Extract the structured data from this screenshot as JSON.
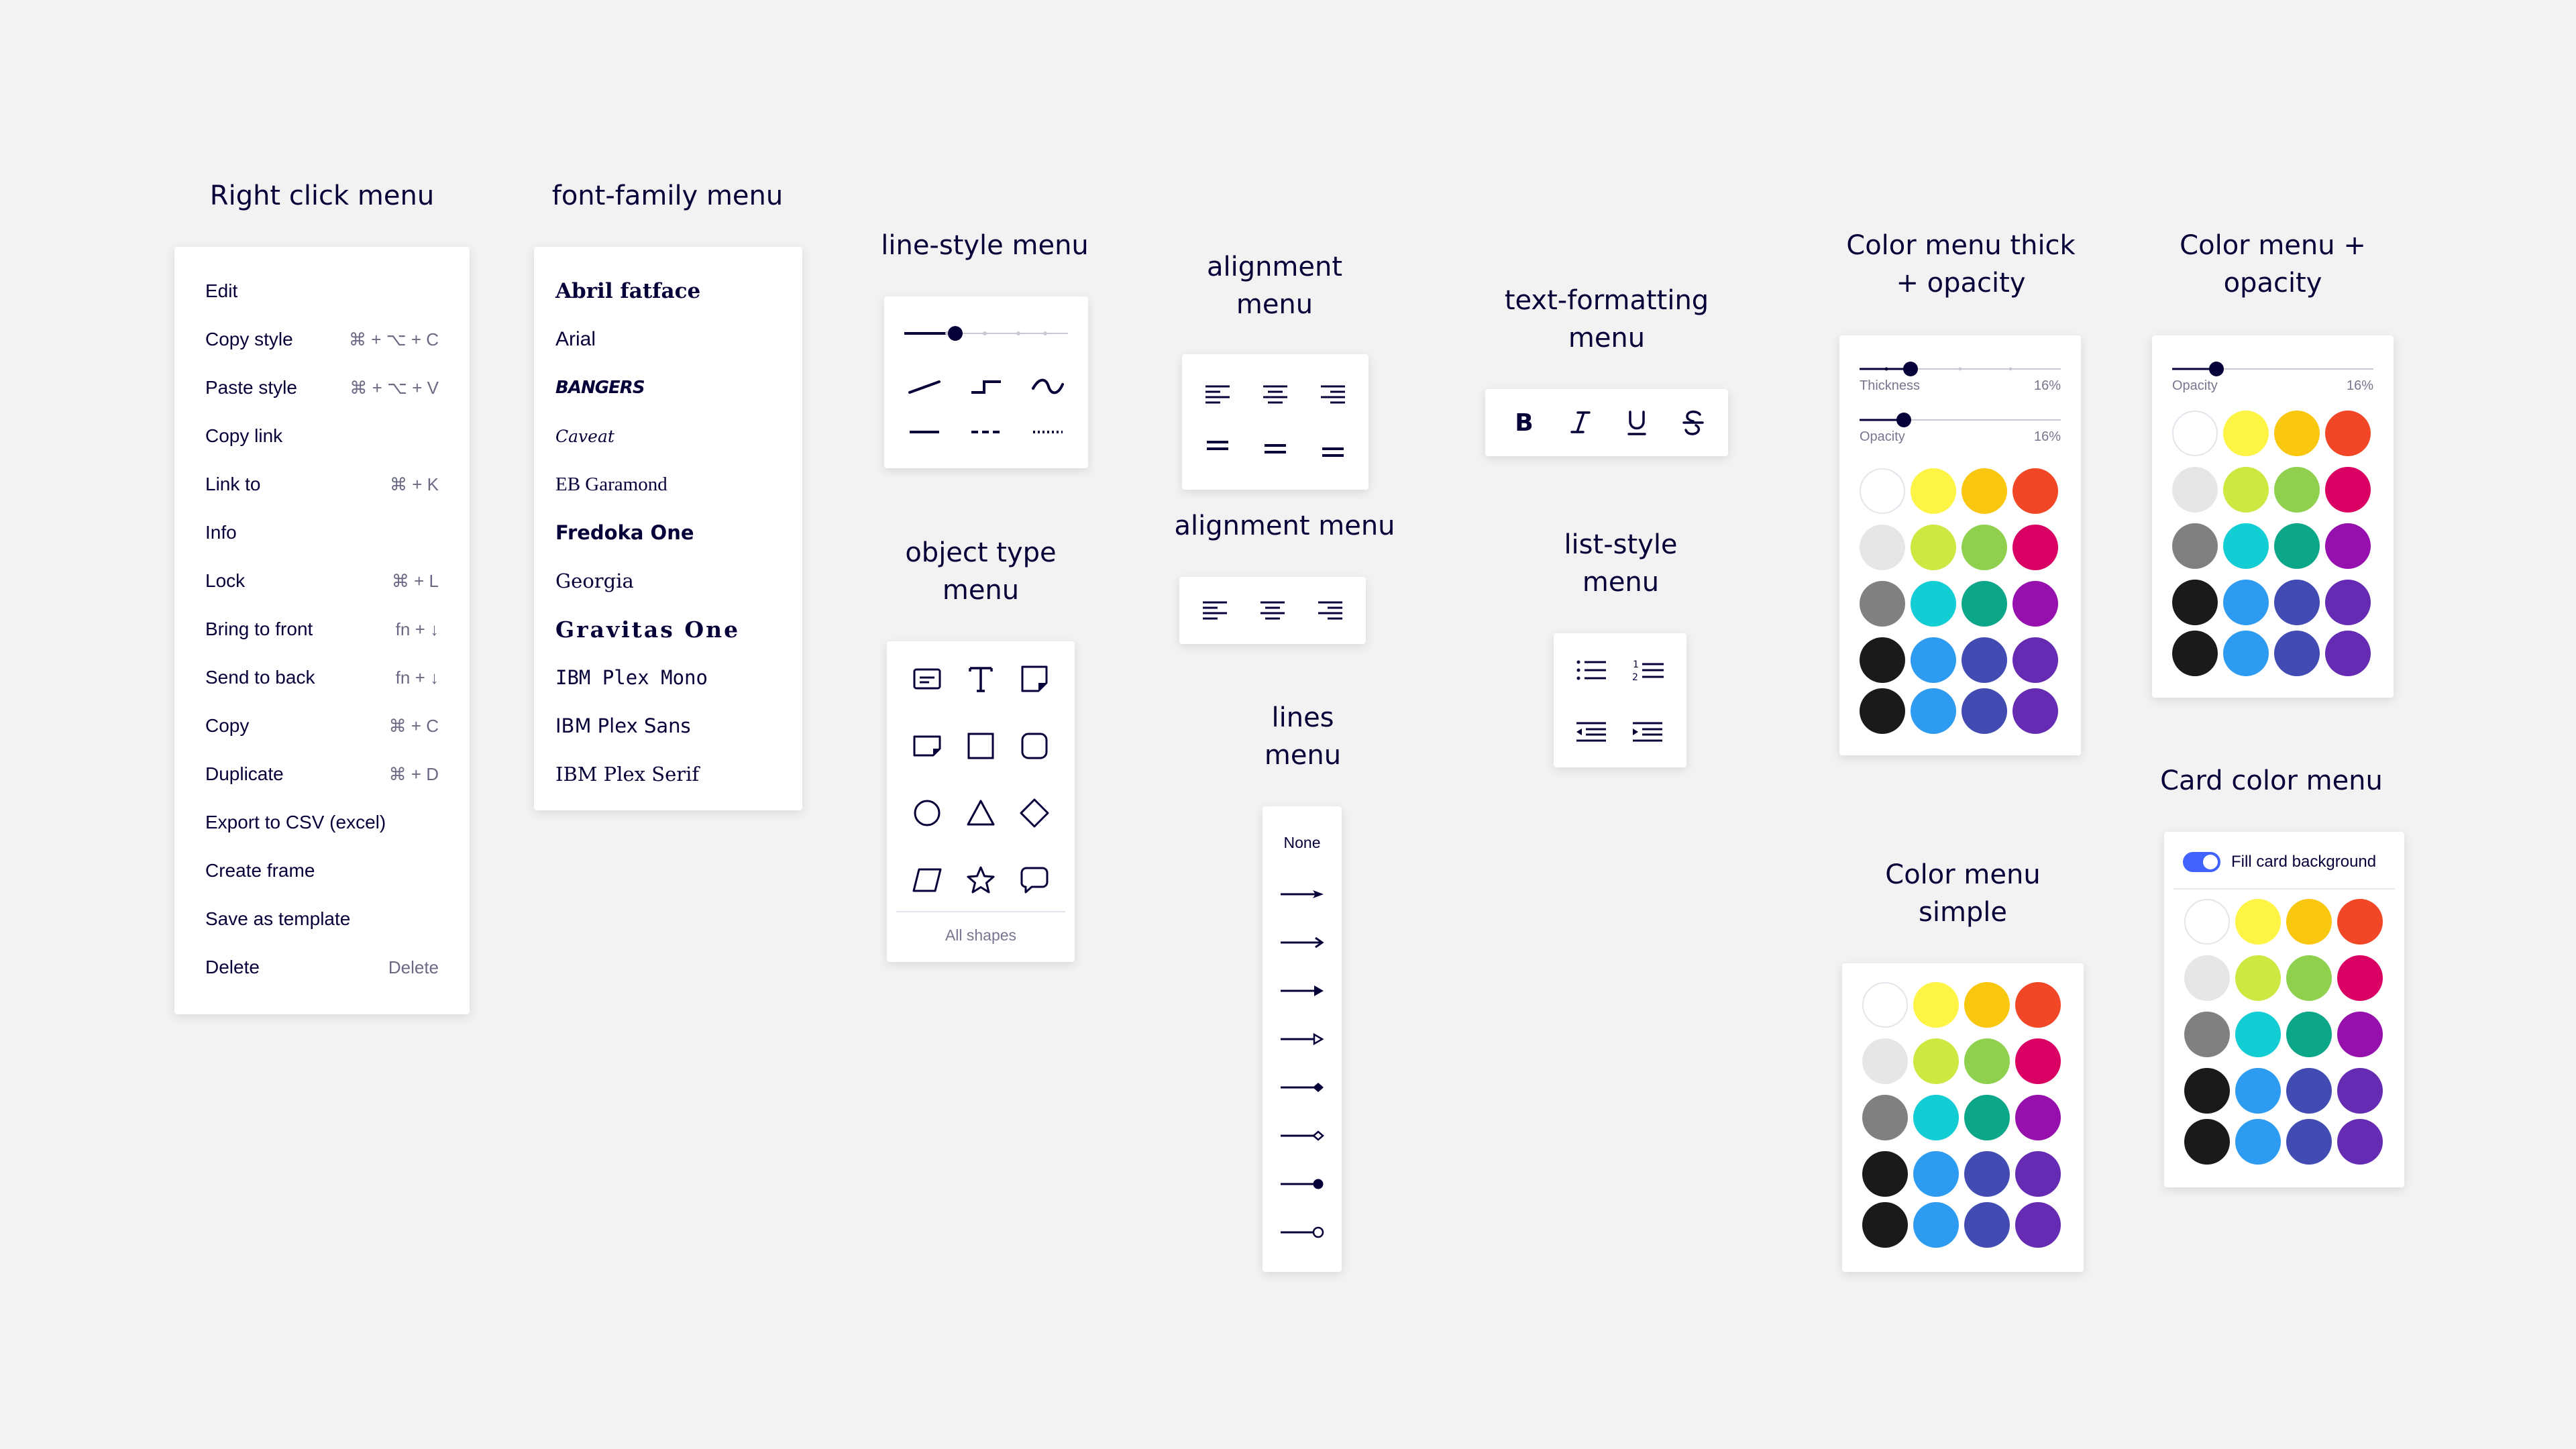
{
  "titles": {
    "right_click": "Right click menu",
    "font_family": "font-family menu",
    "line_style": "line-style menu",
    "alignment_1a": "alignment",
    "alignment_1b": "menu",
    "alignment_2": "alignment menu",
    "object_type_a": "object type",
    "object_type_b": "menu",
    "text_format_a": "text-formatting",
    "text_format_b": "menu",
    "list_style_a": "list-style",
    "list_style_b": "menu",
    "lines_a": "lines",
    "lines_b": "menu",
    "color_thick_a": "Color menu thick",
    "color_thick_b": "+ opacity",
    "color_opacity_a": "Color menu +",
    "color_opacity_b": "opacity",
    "color_simple_a": "Color menu",
    "color_simple_b": "simple",
    "card_color": "Card color menu"
  },
  "right_click_menu": {
    "items": [
      {
        "label": "Edit",
        "shortcut": ""
      },
      {
        "label": "Copy style",
        "shortcut": "⌘ + ⌥ + C"
      },
      {
        "label": "Paste style",
        "shortcut": "⌘ + ⌥ + V"
      },
      {
        "label": "Copy link",
        "shortcut": ""
      },
      {
        "label": "Link to",
        "shortcut": "⌘ + K"
      },
      {
        "label": "Info",
        "shortcut": ""
      },
      {
        "label": "Lock",
        "shortcut": "⌘ + L"
      },
      {
        "label": "Bring to front",
        "shortcut": "fn + ↓"
      },
      {
        "label": "Send to back",
        "shortcut": "fn + ↓"
      },
      {
        "label": "Copy",
        "shortcut": "⌘ + C"
      },
      {
        "label": "Duplicate",
        "shortcut": "⌘ + D"
      },
      {
        "label": "Export to CSV (excel)",
        "shortcut": ""
      },
      {
        "label": "Create frame",
        "shortcut": ""
      },
      {
        "label": "Save as template",
        "shortcut": ""
      },
      {
        "label": "Delete",
        "shortcut": "Delete"
      }
    ]
  },
  "font_family_menu": {
    "items": [
      "Abril fatface",
      "Arial",
      "BANGERS",
      "Caveat",
      "EB Garamond",
      "Fredoka One",
      "Georgia",
      "Gravitas One",
      "IBM Plex Mono",
      "IBM Plex Sans",
      "IBM Plex Serif"
    ]
  },
  "object_type_menu": {
    "all_shapes": "All shapes"
  },
  "lines_menu": {
    "none": "None"
  },
  "color_thick_menu": {
    "thickness_label": "Thickness",
    "thickness_value": "16%",
    "opacity_label": "Opacity",
    "opacity_value": "16%"
  },
  "color_opacity_menu": {
    "opacity_label": "Opacity",
    "opacity_value": "16%"
  },
  "card_color_menu": {
    "fill_label": "Fill card background"
  },
  "palette": [
    [
      "#ffffff",
      "#fef445",
      "#fac710",
      "#f24726"
    ],
    [
      "#e6e6e6",
      "#cee741",
      "#8fd14f",
      "#da0063"
    ],
    [
      "#808080",
      "#12cdd4",
      "#0ca789",
      "#9510ac"
    ],
    [
      "#1a1a1a",
      "#2d9bf0",
      "#414bb2",
      "#652cb3"
    ],
    [
      "#1a1a1a",
      "#2d9bf0",
      "#414bb2",
      "#652cb3"
    ]
  ],
  "colors": {
    "accent": "#050038",
    "toggle": "#4262ff",
    "muted": "#6b6a85"
  }
}
